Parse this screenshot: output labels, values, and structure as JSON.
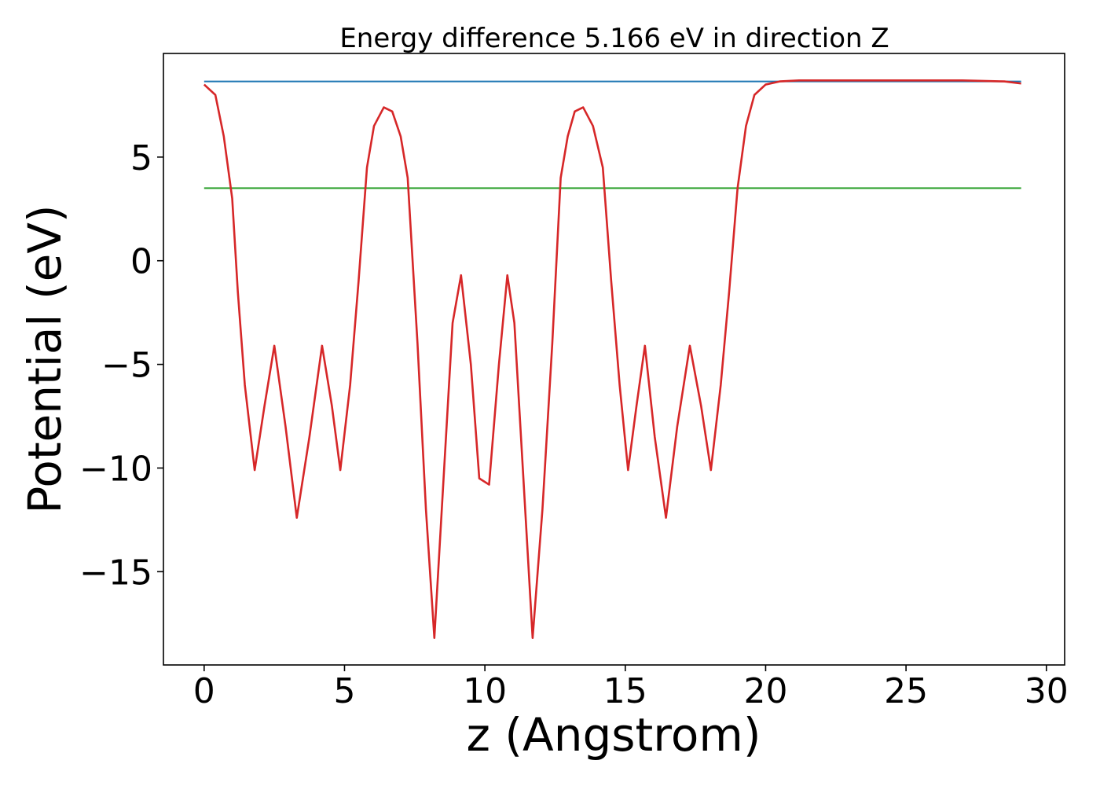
{
  "chart_data": {
    "type": "line",
    "title": "Energy difference 5.166 eV in direction Z",
    "xlabel": "z (Angstrom)",
    "ylabel": "Potential (eV)",
    "xlim": [
      -1.45,
      30.65
    ],
    "ylim": [
      -19.5,
      10.0
    ],
    "xticks": [
      0,
      5,
      10,
      15,
      20,
      25,
      30
    ],
    "xtick_labels": [
      "0",
      "5",
      "10",
      "15",
      "20",
      "25",
      "30"
    ],
    "yticks": [
      -15,
      -10,
      -5,
      0,
      5
    ],
    "ytick_labels": [
      "−15",
      "−10",
      "−5",
      "0",
      "5"
    ],
    "grid": false,
    "legend": "none",
    "series": [
      {
        "color": "#1f77b4",
        "x": [
          0,
          29.1
        ],
        "y": [
          8.65,
          8.65
        ]
      },
      {
        "color": "#2ca02c",
        "x": [
          0,
          29.1
        ],
        "y": [
          3.5,
          3.5
        ]
      },
      {
        "color": "#d62728",
        "x": [
          0,
          0.4,
          0.7,
          1.0,
          1.2,
          1.45,
          1.8,
          2.15,
          2.5,
          2.9,
          3.3,
          3.75,
          4.2,
          4.55,
          4.85,
          5.2,
          5.5,
          5.8,
          6.05,
          6.4,
          6.7,
          7.0,
          7.25,
          7.6,
          7.9,
          8.2,
          8.55,
          8.85,
          9.15,
          9.5,
          9.8,
          10.15,
          10.5,
          10.8,
          11.05,
          11.35,
          11.7,
          12.05,
          12.4,
          12.7,
          12.95,
          13.2,
          13.5,
          13.85,
          14.2,
          14.5,
          14.8,
          15.1,
          15.4,
          15.7,
          16.05,
          16.45,
          16.85,
          17.3,
          17.7,
          18.05,
          18.4,
          18.7,
          19.0,
          19.3,
          19.6,
          20.0,
          20.5,
          21.2,
          23.0,
          25.0,
          27.0,
          28.5,
          29.1
        ],
        "y": [
          8.5,
          8.0,
          6.0,
          3.0,
          -1.5,
          -6.0,
          -10.1,
          -7.0,
          -4.1,
          -8.0,
          -12.4,
          -8.5,
          -4.1,
          -7.0,
          -10.1,
          -6.0,
          -1.0,
          4.5,
          6.5,
          7.4,
          7.2,
          6.0,
          4.0,
          -4.0,
          -12.0,
          -18.2,
          -10.0,
          -3.0,
          -0.7,
          -5.0,
          -10.5,
          -10.8,
          -5.0,
          -0.7,
          -3.0,
          -10.0,
          -18.2,
          -12.0,
          -4.0,
          4.0,
          6.0,
          7.2,
          7.4,
          6.5,
          4.5,
          -1.0,
          -6.0,
          -10.1,
          -7.0,
          -4.1,
          -8.5,
          -12.4,
          -8.0,
          -4.1,
          -7.0,
          -10.1,
          -6.0,
          -1.5,
          3.5,
          6.5,
          8.0,
          8.5,
          8.65,
          8.7,
          8.7,
          8.7,
          8.7,
          8.65,
          8.55
        ]
      }
    ]
  }
}
